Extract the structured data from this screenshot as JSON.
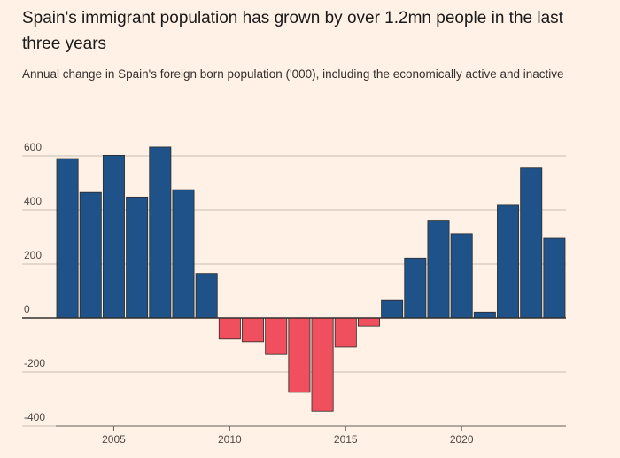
{
  "title": "Spain's immigrant population has grown by over 1.2mn people in the last three years",
  "subtitle": "Annual change in Spain's foreign born population ('000), including the economically active and inactive",
  "colors": {
    "positive": "#1f5288",
    "negative": "#f04f5e",
    "grid": "#c9bfb5",
    "zero_line": "#33302e",
    "background": "#fff1e5"
  },
  "chart_data": {
    "type": "bar",
    "x": [
      2003,
      2004,
      2005,
      2006,
      2007,
      2008,
      2009,
      2010,
      2011,
      2012,
      2013,
      2014,
      2015,
      2016,
      2017,
      2018,
      2019,
      2020,
      2021,
      2022,
      2023,
      2024
    ],
    "values": [
      590,
      465,
      602,
      448,
      633,
      475,
      165,
      -78,
      -88,
      -135,
      -275,
      -345,
      -108,
      -30,
      65,
      222,
      362,
      312,
      22,
      420,
      555,
      295
    ],
    "ylim": [
      -400,
      650
    ],
    "yticks": [
      -400,
      -200,
      0,
      200,
      400,
      600
    ],
    "xticks": [
      2005,
      2010,
      2015,
      2020
    ],
    "xlim": [
      2002.5,
      2024.5
    ],
    "grid": "horizontal",
    "xlabel": "",
    "ylabel": ""
  }
}
